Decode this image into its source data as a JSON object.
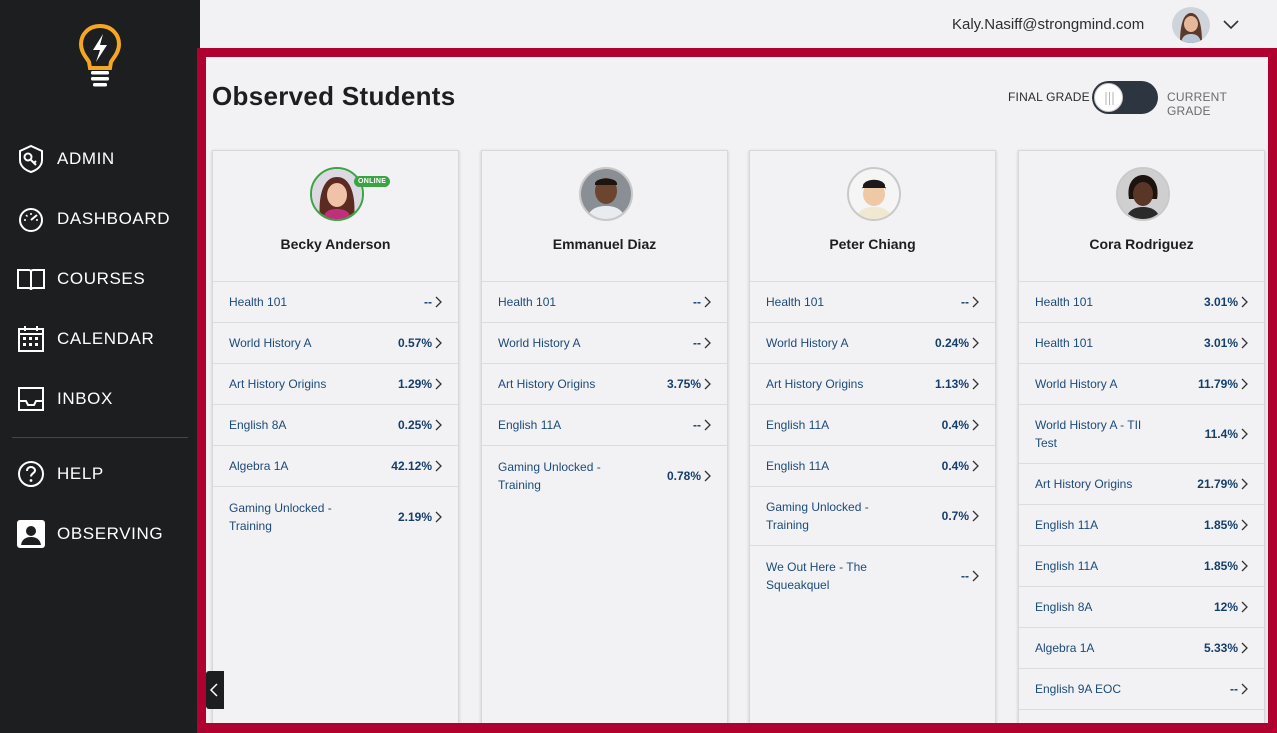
{
  "sidebar": {
    "items": [
      {
        "label": "ADMIN",
        "icon": "admin-key-icon"
      },
      {
        "label": "DASHBOARD",
        "icon": "dashboard-gauge-icon"
      },
      {
        "label": "COURSES",
        "icon": "book-icon"
      },
      {
        "label": "CALENDAR",
        "icon": "calendar-icon"
      },
      {
        "label": "INBOX",
        "icon": "inbox-icon"
      },
      {
        "label": "HELP",
        "icon": "help-icon"
      },
      {
        "label": "OBSERVING",
        "icon": "observing-icon"
      }
    ],
    "logo": "lightbulb-logo"
  },
  "header": {
    "user_email": "Kaly.Nasiff@strongmind.com"
  },
  "main": {
    "title": "Observed Students",
    "toggle": {
      "left_label": "FINAL GRADE",
      "right_label": "CURRENT GRADE"
    },
    "online_label": "ONLINE",
    "students": [
      {
        "name": "Becky Anderson",
        "online": true,
        "courses": [
          {
            "name": "Health 101",
            "grade": "--"
          },
          {
            "name": "World History A",
            "grade": "0.57%"
          },
          {
            "name": "Art History Origins",
            "grade": "1.29%"
          },
          {
            "name": "English 8A",
            "grade": "0.25%"
          },
          {
            "name": "Algebra 1A",
            "grade": "42.12%"
          },
          {
            "name": "Gaming Unlocked - Training",
            "grade": "2.19%"
          }
        ]
      },
      {
        "name": "Emmanuel Diaz",
        "online": false,
        "courses": [
          {
            "name": "Health 101",
            "grade": "--"
          },
          {
            "name": "World History A",
            "grade": "--"
          },
          {
            "name": "Art History Origins",
            "grade": "3.75%"
          },
          {
            "name": "English 11A",
            "grade": "--"
          },
          {
            "name": "Gaming Unlocked - Training",
            "grade": "0.78%"
          }
        ]
      },
      {
        "name": "Peter Chiang",
        "online": false,
        "courses": [
          {
            "name": "Health 101",
            "grade": "--"
          },
          {
            "name": "World History A",
            "grade": "0.24%"
          },
          {
            "name": "Art History Origins",
            "grade": "1.13%"
          },
          {
            "name": "English 11A",
            "grade": "0.4%"
          },
          {
            "name": "English 11A",
            "grade": "0.4%"
          },
          {
            "name": "Gaming Unlocked - Training",
            "grade": "0.7%"
          },
          {
            "name": "We Out Here - The Squeakquel",
            "grade": "--"
          }
        ]
      },
      {
        "name": "Cora Rodriguez",
        "online": false,
        "courses": [
          {
            "name": "Health 101",
            "grade": "3.01%"
          },
          {
            "name": "Health 101",
            "grade": "3.01%"
          },
          {
            "name": "World History A",
            "grade": "11.79%"
          },
          {
            "name": "World History A - TII Test",
            "grade": "11.4%"
          },
          {
            "name": "Art History Origins",
            "grade": "21.79%"
          },
          {
            "name": "English 11A",
            "grade": "1.85%"
          },
          {
            "name": "English 11A",
            "grade": "1.85%"
          },
          {
            "name": "English 8A",
            "grade": "12%"
          },
          {
            "name": "Algebra 1A",
            "grade": "5.33%"
          },
          {
            "name": "English 9A EOC",
            "grade": "--"
          }
        ]
      }
    ]
  },
  "colors": {
    "sidebar_bg": "#1d1e20",
    "frame_border": "#b0002f",
    "link_text": "#1c4a7a",
    "online_green": "#3aa442",
    "logo_orange": "#f5a623"
  }
}
